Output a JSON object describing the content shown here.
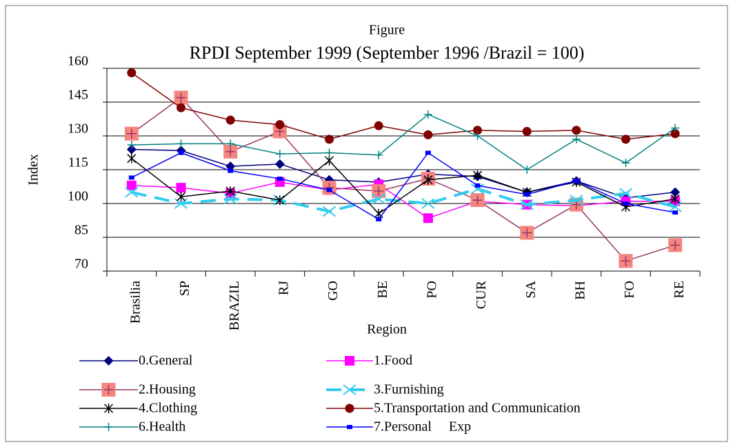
{
  "chart_data": {
    "type": "line",
    "supertitle": "Figure",
    "title": "RPDI September 1999 (September 1996 /Brazil = 100)",
    "xlabel": "Region",
    "ylabel": "Index",
    "categories": [
      "Brasilia",
      "SP",
      "BRAZIL",
      "RJ",
      "GO",
      "BE",
      "PO",
      "CUR",
      "SA",
      "BH",
      "FO",
      "RE"
    ],
    "ylim": [
      70,
      160
    ],
    "yticks": [
      70,
      85,
      100,
      115,
      130,
      145,
      160
    ],
    "grid": true,
    "series": [
      {
        "name": "0.General",
        "color": "#000080",
        "marker": "diamond",
        "values": [
          124,
          123.5,
          116.5,
          117.5,
          110.5,
          109.5,
          113,
          112,
          105,
          110,
          102.5,
          105
        ]
      },
      {
        "name": "1.Food",
        "color": "#ff00ff",
        "marker": "square",
        "values": [
          108,
          107,
          104.5,
          109.5,
          106,
          108.5,
          93.5,
          101,
          99.5,
          99,
          101,
          101
        ]
      },
      {
        "name": "2.Housing",
        "color": "#993366",
        "marker": "square-plus",
        "marker_color": "#f4857f",
        "values": [
          131,
          147,
          123,
          132,
          107,
          105.5,
          111,
          101.5,
          87,
          99.5,
          74.5,
          81.5
        ]
      },
      {
        "name": "3.Furnishing",
        "color": "#33ccee",
        "marker": "x",
        "dash": true,
        "values": [
          105,
          100,
          102,
          101.5,
          96.5,
          102,
          100,
          106.5,
          99.5,
          101.5,
          104.5,
          98.5
        ]
      },
      {
        "name": "4.Clothing",
        "color": "#000000",
        "marker": "star",
        "values": [
          120,
          103,
          105.5,
          101.5,
          119,
          95.5,
          110.5,
          112.5,
          105,
          109.5,
          98.5,
          102
        ]
      },
      {
        "name": "5.Transportation and Communication",
        "color": "#800000",
        "marker": "circle",
        "values": [
          158,
          142.5,
          137,
          135,
          128.5,
          134.5,
          130.5,
          132.5,
          132,
          132.5,
          128.5,
          131
        ]
      },
      {
        "name": "6.Health",
        "color": "#008080",
        "marker": "plus",
        "values": [
          126,
          126.5,
          126.5,
          122,
          122.5,
          121.5,
          139.5,
          130,
          115,
          128.5,
          118,
          133.5
        ]
      },
      {
        "name": "7.Personal     Exp",
        "color": "#0000ff",
        "marker": "dash",
        "values": [
          111.5,
          122.5,
          114.5,
          111,
          106,
          93,
          122.5,
          108,
          104,
          110,
          100,
          96
        ]
      }
    ]
  }
}
